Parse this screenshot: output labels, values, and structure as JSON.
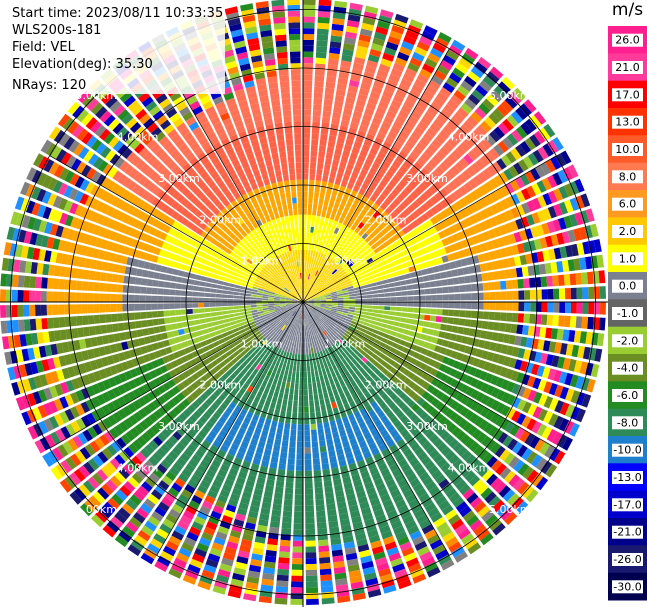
{
  "header": {
    "start_time": "Start time: 2023/08/11 10:33:35",
    "instrument": "WLS200s-181",
    "field": "Field: VEL",
    "elevation": "Elevation(deg): 35.30",
    "nrays": "NRays: 120"
  },
  "range_rings": {
    "labels": [
      "1.00km",
      "2.00km",
      "3.00km",
      "4.00km",
      "5.00km"
    ],
    "max_km": 5.0
  },
  "colorbar": {
    "unit": "m/s",
    "ticks": [
      "26.0",
      "21.0",
      "17.0",
      "13.0",
      "10.0",
      "8.0",
      "6.0",
      "2.0",
      "1.0",
      "0.0",
      "-1.0",
      "-2.0",
      "-4.0",
      "-6.0",
      "-8.0",
      "-10.0",
      "-13.0",
      "-17.0",
      "-21.0",
      "-26.0",
      "-30.0"
    ],
    "colors": [
      "#ff1f8f",
      "#ff3a9a",
      "#ff0000",
      "#ff3300",
      "#ff5a2a",
      "#ff7a50",
      "#ff9a20",
      "#ffc800",
      "#ffff00",
      "#7a8090",
      "#646464",
      "#9acd32",
      "#6b8e23",
      "#228b22",
      "#2e8b57",
      "#1e7fcc",
      "#0000ff",
      "#0000cd",
      "#00008b",
      "#191970",
      "#000050"
    ]
  },
  "map": {
    "nrays": 120
  }
}
